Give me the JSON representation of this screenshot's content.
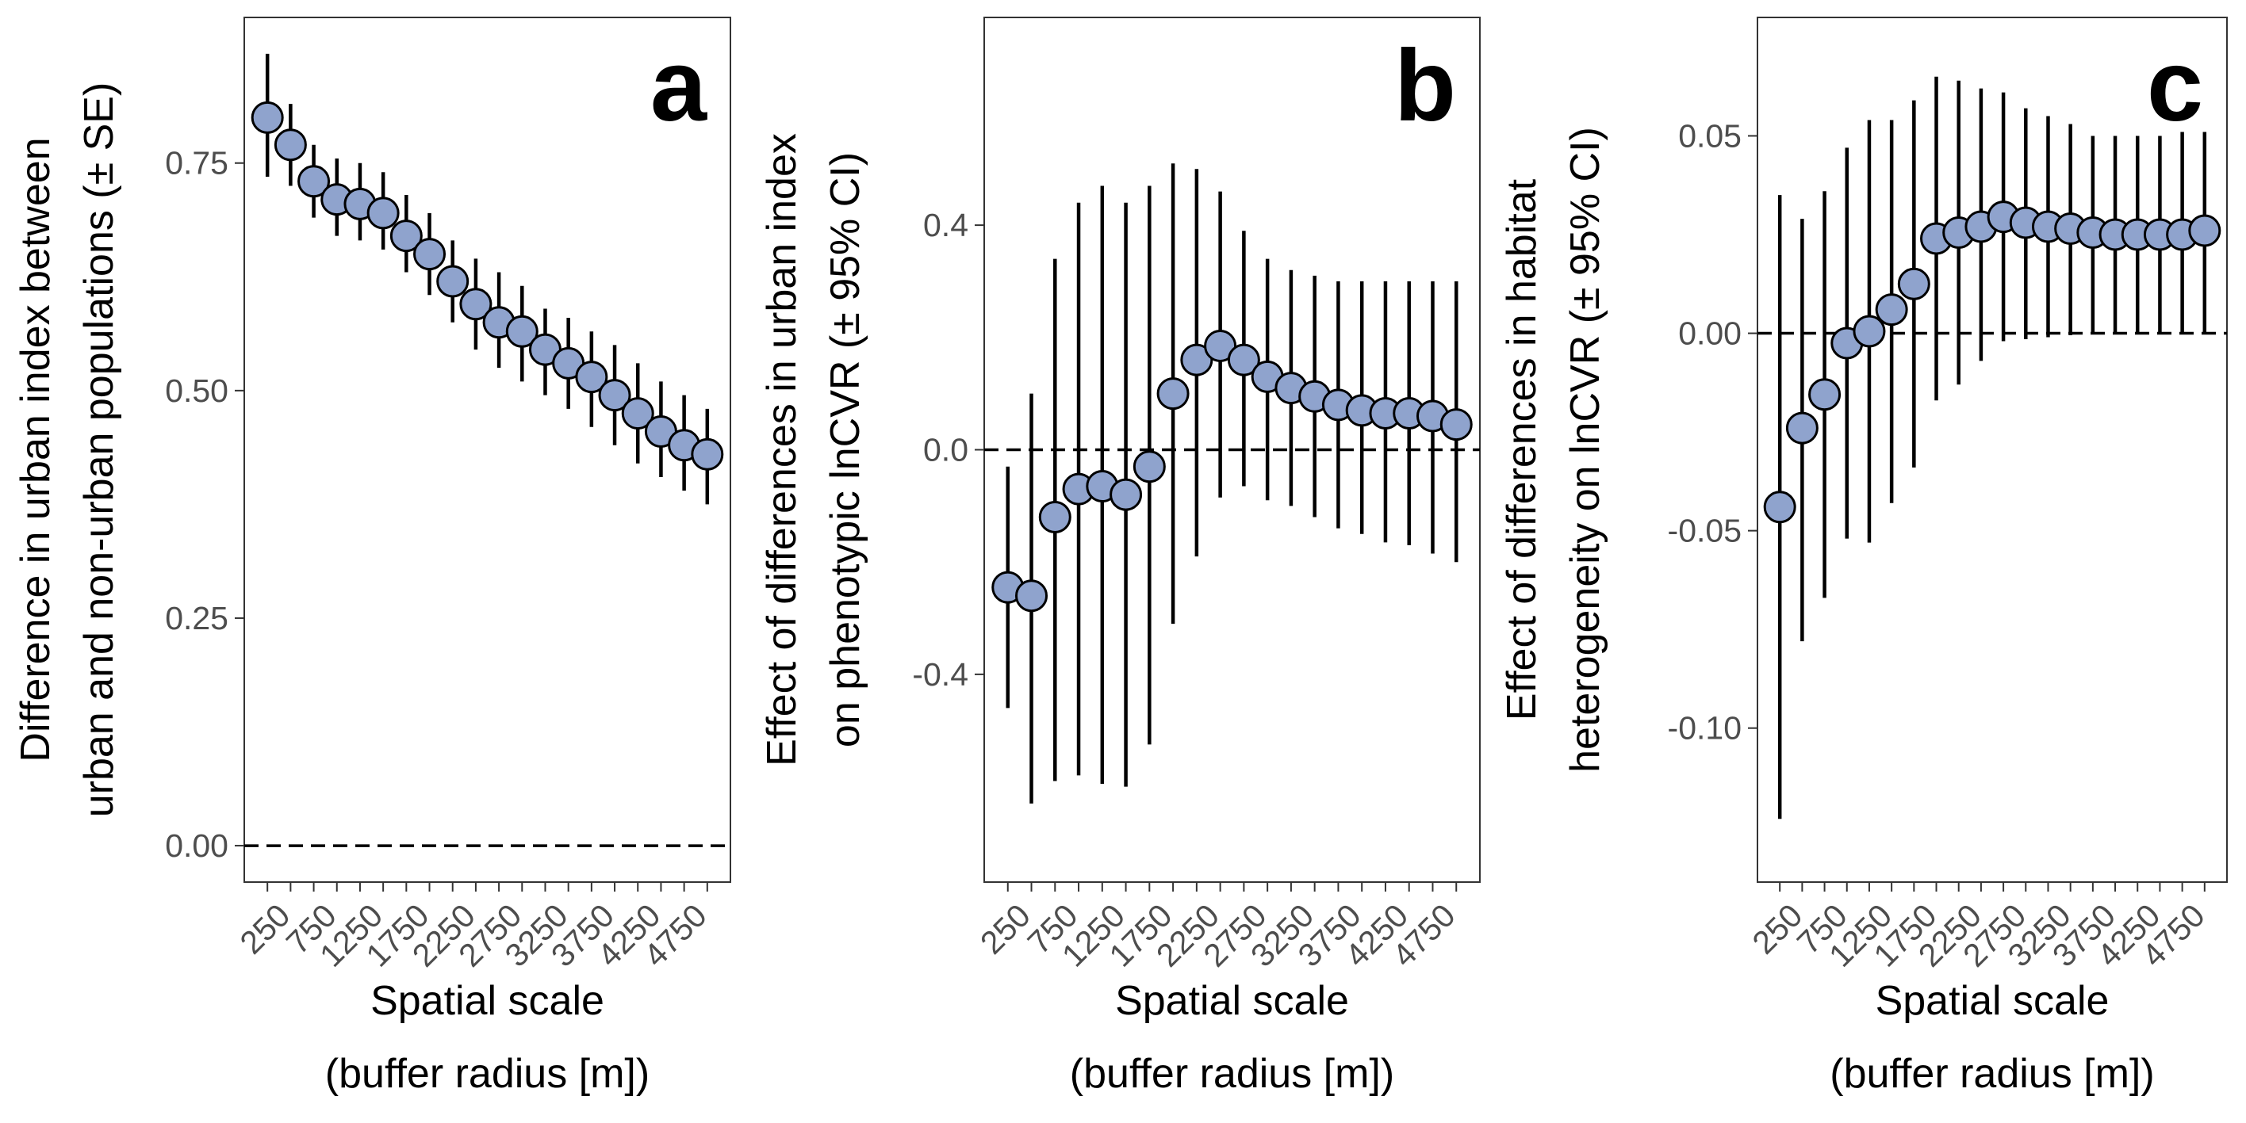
{
  "figure": {
    "x_tick_labels": [
      "250",
      "750",
      "1250",
      "1750",
      "2250",
      "2750",
      "3250",
      "3750",
      "4250",
      "4750"
    ],
    "x_title_lines": [
      "Spatial scale",
      "(buffer radius [m])"
    ],
    "point_fill": "#8fa3cd",
    "point_stroke": "#000000",
    "errorbar_color": "#000000",
    "reference_line": "dashed at y = 0"
  },
  "chart_data": [
    {
      "type": "scatter",
      "panel_label": "a",
      "x": [
        250,
        500,
        750,
        1000,
        1250,
        1500,
        1750,
        2000,
        2250,
        2500,
        2750,
        3000,
        3250,
        3500,
        3750,
        4000,
        4250,
        4500,
        4750,
        5000
      ],
      "y": [
        0.8,
        0.77,
        0.73,
        0.71,
        0.705,
        0.695,
        0.67,
        0.65,
        0.62,
        0.595,
        0.575,
        0.565,
        0.545,
        0.53,
        0.515,
        0.495,
        0.475,
        0.455,
        0.44,
        0.43
      ],
      "y_lower": [
        0.735,
        0.725,
        0.69,
        0.67,
        0.665,
        0.655,
        0.63,
        0.605,
        0.575,
        0.545,
        0.525,
        0.51,
        0.495,
        0.48,
        0.46,
        0.44,
        0.42,
        0.405,
        0.39,
        0.375
      ],
      "y_upper": [
        0.87,
        0.815,
        0.77,
        0.755,
        0.75,
        0.74,
        0.715,
        0.695,
        0.665,
        0.645,
        0.63,
        0.615,
        0.59,
        0.58,
        0.565,
        0.55,
        0.53,
        0.51,
        0.495,
        0.48
      ],
      "ylabel_lines": [
        "Difference in urban index between",
        "urban and non-urban populations (± SE)"
      ],
      "y_ticks": [
        0.0,
        0.25,
        0.5,
        0.75
      ],
      "y_tick_labels": [
        "0.00",
        "0.25",
        "0.50",
        "0.75"
      ],
      "ylim": [
        -0.04,
        0.91
      ],
      "xlim": [
        0,
        5250
      ]
    },
    {
      "type": "scatter",
      "panel_label": "b",
      "x": [
        250,
        500,
        750,
        1000,
        1250,
        1500,
        1750,
        2000,
        2250,
        2500,
        2750,
        3000,
        3250,
        3500,
        3750,
        4000,
        4250,
        4500,
        4750,
        5000
      ],
      "y": [
        -0.245,
        -0.26,
        -0.12,
        -0.07,
        -0.065,
        -0.08,
        -0.03,
        0.1,
        0.16,
        0.185,
        0.16,
        0.13,
        0.11,
        0.095,
        0.08,
        0.07,
        0.065,
        0.065,
        0.06,
        0.045
      ],
      "y_lower": [
        -0.46,
        -0.63,
        -0.59,
        -0.58,
        -0.595,
        -0.6,
        -0.525,
        -0.31,
        -0.19,
        -0.085,
        -0.065,
        -0.09,
        -0.1,
        -0.12,
        -0.14,
        -0.15,
        -0.165,
        -0.17,
        -0.185,
        -0.2
      ],
      "y_upper": [
        -0.03,
        0.1,
        0.34,
        0.44,
        0.47,
        0.44,
        0.47,
        0.51,
        0.5,
        0.46,
        0.39,
        0.34,
        0.32,
        0.31,
        0.3,
        0.3,
        0.3,
        0.3,
        0.3,
        0.3
      ],
      "ylabel_lines": [
        "Effect of differences in urban index",
        "on phenotypic lnCVR (± 95% CI)"
      ],
      "y_ticks": [
        -0.4,
        0.0,
        0.4
      ],
      "y_tick_labels": [
        "-0.4",
        "0.0",
        "0.4"
      ],
      "ylim": [
        -0.77,
        0.77
      ],
      "xlim": [
        0,
        5250
      ]
    },
    {
      "type": "scatter",
      "panel_label": "c",
      "x": [
        250,
        500,
        750,
        1000,
        1250,
        1500,
        1750,
        2000,
        2250,
        2500,
        2750,
        3000,
        3250,
        3500,
        3750,
        4000,
        4250,
        4500,
        4750,
        5000
      ],
      "y": [
        -0.044,
        -0.024,
        -0.0155,
        -0.0025,
        0.0005,
        0.006,
        0.0125,
        0.024,
        0.0255,
        0.027,
        0.0295,
        0.028,
        0.027,
        0.0265,
        0.0255,
        0.025,
        0.025,
        0.025,
        0.025,
        0.026
      ],
      "y_lower": [
        -0.123,
        -0.078,
        -0.067,
        -0.052,
        -0.053,
        -0.043,
        -0.034,
        -0.017,
        -0.013,
        -0.007,
        -0.002,
        -0.0015,
        -0.001,
        -0.0005,
        0.0,
        0.0,
        0.0,
        0.0,
        0.0,
        0.0
      ],
      "y_upper": [
        0.035,
        0.029,
        0.036,
        0.047,
        0.054,
        0.054,
        0.059,
        0.065,
        0.064,
        0.062,
        0.061,
        0.057,
        0.055,
        0.053,
        0.05,
        0.05,
        0.05,
        0.05,
        0.051,
        0.051
      ],
      "ylabel_lines": [
        "Effect of differences in habitat",
        "heterogeneity on lnCVR (± 95% CI)"
      ],
      "y_ticks": [
        -0.1,
        -0.05,
        0.0,
        0.05
      ],
      "y_tick_labels": [
        "-0.10",
        "-0.05",
        "0.00",
        "0.05"
      ],
      "ylim": [
        -0.139,
        0.08
      ],
      "xlim": [
        0,
        5250
      ]
    }
  ]
}
